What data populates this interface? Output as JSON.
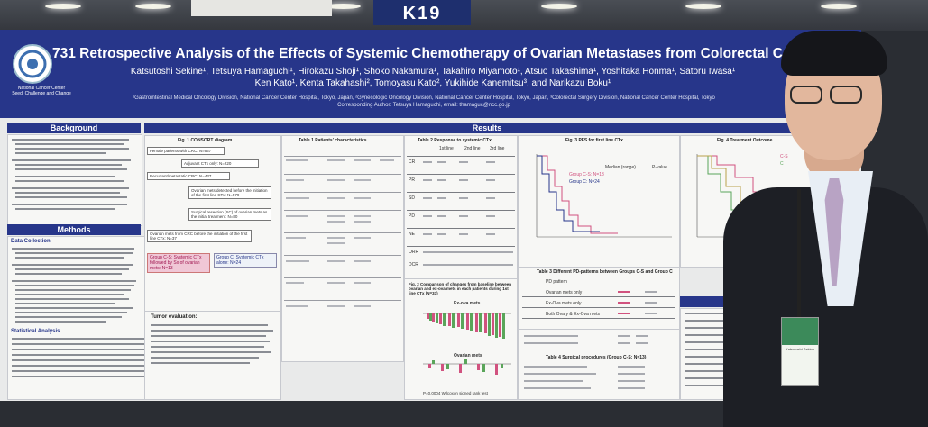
{
  "sign": "K19",
  "poster": {
    "title": "731 Retrospective Analysis of the Effects of Systemic Chemotherapy of Ovarian Metastases from Colorectal Cancer",
    "authors_line1": "Katsutoshi Sekine¹, Tetsuya Hamaguchi¹, Hirokazu Shoji¹, Shoko Nakamura¹, Takahiro Miyamoto¹, Atsuo Takashima¹, Yoshitaka Honma¹, Satoru Iwasa¹",
    "authors_line2": "Ken Kato¹, Kenta Takahashi², Tomoyasu Kato², Yukihide Kanemitsu³, and Narikazu Boku¹",
    "affiliations": "¹Gastrointestinal Medical Oncology Division, National Cancer Center Hospital, Tokyo, Japan, ²Gynecologic Oncology Division, National Cancer Center Hospital, Tokyo, Japan, ³Colorectal Surgery Division, National Cancer Center Hospital, Tokyo",
    "corresponding": "Corresponding Author: Tetsuya Hamaguchi, email: thamaguc@ncc.go.jp",
    "logo_text": "National Cancer Center",
    "logo_subtext": "Seed, Challenge and Change",
    "sections": {
      "background": "Background",
      "methods": "Methods",
      "results": "Results",
      "discussion": "Discuss"
    },
    "methods_subheads": {
      "data": "Data Collection",
      "stats": "Statistical Analysis"
    },
    "figures": {
      "fig1": "Fig. 1 CONSORT diagram",
      "table1": "Table 1 Patients' characteristics",
      "table2": "Table 2 Response to systemic CTx",
      "fig3": "Fig. 3 PFS for first line CTx",
      "fig4": "Fig. 4 Treatment Outcome",
      "fig2": "Fig. 2 Comparison of changes from baseline between ovarian and ex-ova mets in each patients during 1st line CTx (N=33)",
      "table3": "Table 3 Different PD-patterns between Groups C-S and Group C",
      "table4": "Table 4 Surgical procedures (Group C-S: N=13)",
      "ex_ova": "Ex-ova mets",
      "ovarian": "Ovarian mets",
      "tumor_eval": "Tumor evaluation:"
    },
    "flow": {
      "box1": "Female patients with CRC: N=667",
      "box2": "Adjuvant CTx only: N=220",
      "box3": "Recurrent/metastatic CRC: N=437",
      "box4": "Ovarian mets detected before the initiation of the first line CTx: N=579",
      "box5": "Surgical resection (SC) of ovarian mets as the initial treatment: N=80",
      "box6": "Ovarian mets from CRC before the initiation of the first line CTx: N=37",
      "groupCS": "Group C-S: Systemic CTx followed by Sx of ovarian mets: N=13",
      "groupC": "Group C: Systemic CTx alone: N=24"
    },
    "table2_cols": [
      "1st line",
      "2nd line",
      "3rd line"
    ],
    "table2_rows": [
      "CR",
      "PR",
      "SD",
      "PD",
      "NE",
      "ORR",
      "DCR"
    ],
    "table3_rows": [
      "PD pattern",
      "Ovarian mets only",
      "Ex-Ova mets only",
      "Both Ovary & Ex-Ova mets"
    ],
    "fig3_legend": [
      "Group C-S: N=13",
      "Group C: N=24"
    ],
    "fig3_header": [
      "Median (range)",
      "P-value"
    ],
    "fig4_legend": [
      "C-S",
      "C"
    ],
    "fig2_footer": "P=0.0004 Wilcoxon signed rank test"
  },
  "badge": {
    "text": "Katsutoshi Sekine"
  },
  "colors": {
    "header": "#27368a",
    "accent_pink": "#d1527f",
    "accent_green": "#5aa55a"
  }
}
